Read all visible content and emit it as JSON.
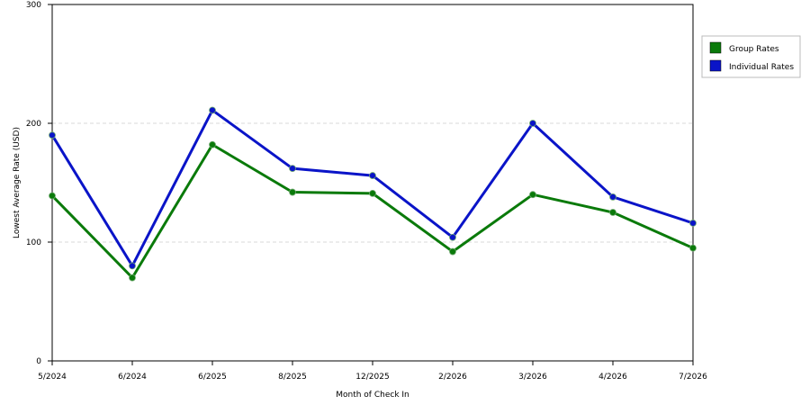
{
  "chart_data": {
    "type": "line",
    "title": "",
    "xlabel": "Month of Check In",
    "ylabel": "Lowest Average Rate (USD)",
    "categories": [
      "5/2024",
      "6/2024",
      "6/2025",
      "8/2025",
      "12/2025",
      "2/2026",
      "3/2026",
      "4/2026",
      "7/2026"
    ],
    "ylim": [
      0,
      300
    ],
    "yticks": [
      "0",
      "100",
      "200",
      "300"
    ],
    "grid": "horizontal dashed",
    "legend_position": "right",
    "series": [
      {
        "name": "Group Rates",
        "color": "#0a7a0a",
        "values": [
          139,
          70,
          182,
          142,
          141,
          92,
          140,
          125,
          95
        ]
      },
      {
        "name": "Individual Rates",
        "color": "#0a14c8",
        "values": [
          190,
          80,
          211,
          162,
          156,
          104,
          200,
          138,
          116
        ]
      }
    ]
  }
}
